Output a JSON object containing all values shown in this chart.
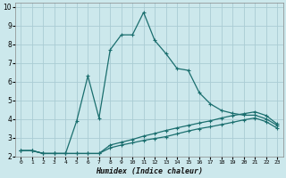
{
  "xlabel": "Humidex (Indice chaleur)",
  "background_color": "#cce8ec",
  "grid_color": "#aaccd4",
  "line_color": "#1a6e6e",
  "xlim": [
    -0.5,
    23.5
  ],
  "ylim": [
    2.0,
    10.2
  ],
  "xticks": [
    0,
    1,
    2,
    3,
    4,
    5,
    6,
    7,
    8,
    9,
    10,
    11,
    12,
    13,
    14,
    15,
    16,
    17,
    18,
    19,
    20,
    21,
    22,
    23
  ],
  "yticks": [
    2,
    3,
    4,
    5,
    6,
    7,
    8,
    9,
    10
  ],
  "series1_x": [
    0,
    1,
    2,
    3,
    4,
    5,
    6,
    7,
    8,
    9,
    10,
    11,
    12,
    13,
    14,
    15,
    16,
    17,
    18,
    19,
    20,
    21,
    22,
    23
  ],
  "series1_y": [
    2.3,
    2.3,
    2.15,
    2.15,
    2.15,
    2.15,
    2.15,
    2.15,
    2.45,
    2.6,
    2.72,
    2.85,
    2.95,
    3.05,
    3.2,
    3.35,
    3.48,
    3.58,
    3.7,
    3.82,
    3.95,
    4.05,
    3.85,
    3.5
  ],
  "series2_x": [
    0,
    1,
    2,
    3,
    4,
    5,
    6,
    7,
    8,
    9,
    10,
    11,
    12,
    13,
    14,
    15,
    16,
    17,
    18,
    19,
    20,
    21,
    22,
    23
  ],
  "series2_y": [
    2.3,
    2.3,
    2.15,
    2.15,
    2.15,
    2.15,
    2.15,
    2.15,
    2.6,
    2.75,
    2.9,
    3.08,
    3.22,
    3.38,
    3.52,
    3.65,
    3.78,
    3.9,
    4.05,
    4.18,
    4.28,
    4.38,
    4.18,
    3.72
  ],
  "series3_x": [
    0,
    1,
    2,
    3,
    4,
    5,
    6,
    7,
    8,
    9,
    10,
    11,
    12,
    13,
    14,
    15,
    16,
    17,
    18,
    19,
    20,
    21,
    22,
    23
  ],
  "series3_y": [
    2.3,
    2.3,
    2.15,
    2.15,
    2.15,
    3.9,
    6.3,
    4.05,
    7.7,
    8.5,
    8.5,
    9.7,
    8.2,
    7.5,
    6.7,
    6.6,
    5.4,
    4.8,
    4.45,
    4.3,
    4.2,
    4.2,
    4.0,
    3.65
  ]
}
